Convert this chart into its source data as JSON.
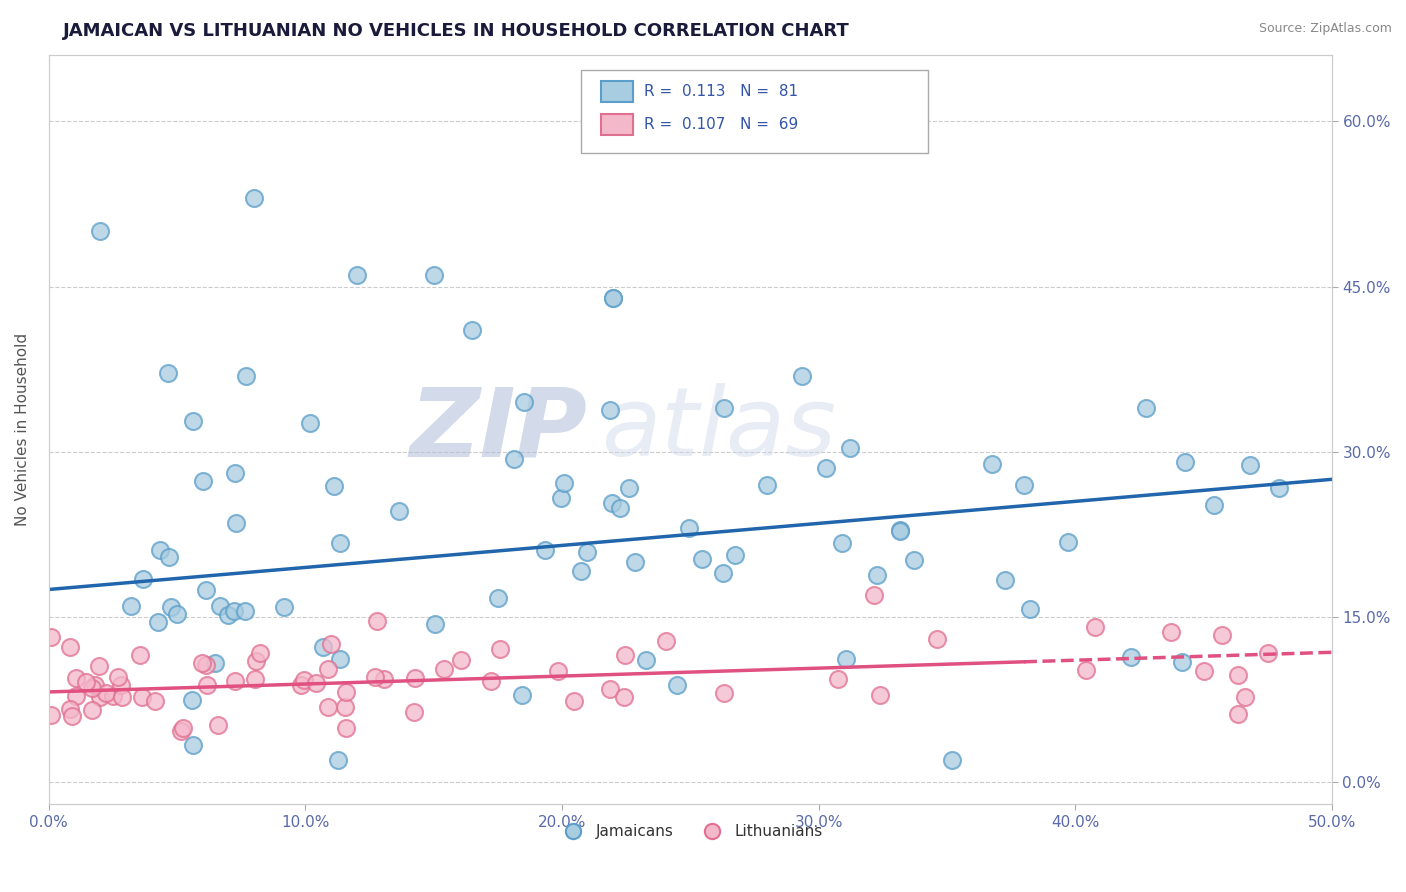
{
  "title": "JAMAICAN VS LITHUANIAN NO VEHICLES IN HOUSEHOLD CORRELATION CHART",
  "source": "Source: ZipAtlas.com",
  "ylabel": "No Vehicles in Household",
  "xlim": [
    0.0,
    0.5
  ],
  "ylim": [
    -0.02,
    0.66
  ],
  "ytick_values": [
    0.0,
    0.15,
    0.3,
    0.45,
    0.6
  ],
  "xtick_values": [
    0.0,
    0.1,
    0.2,
    0.3,
    0.4,
    0.5
  ],
  "legend_R1": "0.113",
  "legend_N1": "81",
  "legend_R2": "0.107",
  "legend_N2": "69",
  "jamaican_color": "#a8cce0",
  "jamaican_edge": "#5b9ec9",
  "lithuanian_color": "#f4b8cb",
  "lithuanian_edge": "#e07090",
  "line_color_jamaican": "#2166ac",
  "line_color_lithuanian": "#e05080",
  "background_color": "#ffffff",
  "grid_color": "#cccccc",
  "watermark_zip": "ZIP",
  "watermark_atlas": "atlas",
  "title_fontsize": 13,
  "axis_label_fontsize": 11,
  "tick_fontsize": 11,
  "jam_line_x0": 0.0,
  "jam_line_y0": 0.175,
  "jam_line_x1": 0.5,
  "jam_line_y1": 0.275,
  "lith_line_x0": 0.0,
  "lith_line_y0": 0.082,
  "lith_line_x1": 0.5,
  "lith_line_y1": 0.118
}
